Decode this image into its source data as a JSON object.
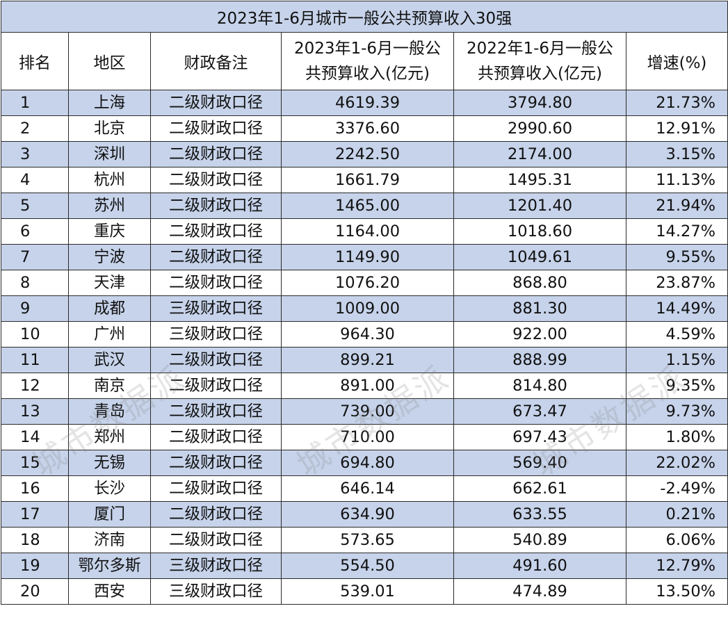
{
  "table": {
    "title": "2023年1-6月城市一般公共预算收入30强",
    "headers": {
      "rank": "排名",
      "region": "地区",
      "note": "财政备注",
      "rev2023_line1": "2023年1-6月一般公",
      "rev2023_line2": "共预算收入(亿元)",
      "rev2022_line1": "2022年1-6月一般公",
      "rev2022_line2": "共预算收入(亿元)",
      "growth": "增速(%)"
    },
    "rows": [
      {
        "rank": "1",
        "region": "上海",
        "note": "二级财政口径",
        "rev2023": "4619.39",
        "rev2022": "3794.80",
        "growth": "21.73%"
      },
      {
        "rank": "2",
        "region": "北京",
        "note": "二级财政口径",
        "rev2023": "3376.60",
        "rev2022": "2990.60",
        "growth": "12.91%"
      },
      {
        "rank": "3",
        "region": "深圳",
        "note": "二级财政口径",
        "rev2023": "2242.50",
        "rev2022": "2174.00",
        "growth": "3.15%"
      },
      {
        "rank": "4",
        "region": "杭州",
        "note": "二级财政口径",
        "rev2023": "1661.79",
        "rev2022": "1495.31",
        "growth": "11.13%"
      },
      {
        "rank": "5",
        "region": "苏州",
        "note": "二级财政口径",
        "rev2023": "1465.00",
        "rev2022": "1201.40",
        "growth": "21.94%"
      },
      {
        "rank": "6",
        "region": "重庆",
        "note": "二级财政口径",
        "rev2023": "1164.00",
        "rev2022": "1018.60",
        "growth": "14.27%"
      },
      {
        "rank": "7",
        "region": "宁波",
        "note": "二级财政口径",
        "rev2023": "1149.90",
        "rev2022": "1049.61",
        "growth": "9.55%"
      },
      {
        "rank": "8",
        "region": "天津",
        "note": "二级财政口径",
        "rev2023": "1076.20",
        "rev2022": "868.80",
        "growth": "23.87%"
      },
      {
        "rank": "9",
        "region": "成都",
        "note": "三级财政口径",
        "rev2023": "1009.00",
        "rev2022": "881.30",
        "growth": "14.49%"
      },
      {
        "rank": "10",
        "region": "广州",
        "note": "三级财政口径",
        "rev2023": "964.30",
        "rev2022": "922.00",
        "growth": "4.59%"
      },
      {
        "rank": "11",
        "region": "武汉",
        "note": "二级财政口径",
        "rev2023": "899.21",
        "rev2022": "888.99",
        "growth": "1.15%"
      },
      {
        "rank": "12",
        "region": "南京",
        "note": "二级财政口径",
        "rev2023": "891.00",
        "rev2022": "814.80",
        "growth": "9.35%"
      },
      {
        "rank": "13",
        "region": "青岛",
        "note": "二级财政口径",
        "rev2023": "739.00",
        "rev2022": "673.47",
        "growth": "9.73%"
      },
      {
        "rank": "14",
        "region": "郑州",
        "note": "二级财政口径",
        "rev2023": "710.00",
        "rev2022": "697.43",
        "growth": "1.80%"
      },
      {
        "rank": "15",
        "region": "无锡",
        "note": "二级财政口径",
        "rev2023": "694.80",
        "rev2022": "569.40",
        "growth": "22.02%"
      },
      {
        "rank": "16",
        "region": "长沙",
        "note": "二级财政口径",
        "rev2023": "646.14",
        "rev2022": "662.61",
        "growth": "-2.49%"
      },
      {
        "rank": "17",
        "region": "厦门",
        "note": "二级财政口径",
        "rev2023": "634.90",
        "rev2022": "633.55",
        "growth": "0.21%"
      },
      {
        "rank": "18",
        "region": "济南",
        "note": "二级财政口径",
        "rev2023": "573.65",
        "rev2022": "540.89",
        "growth": "6.06%"
      },
      {
        "rank": "19",
        "region": "鄂尔多斯",
        "note": "三级财政口径",
        "rev2023": "554.50",
        "rev2022": "491.60",
        "growth": "12.79%"
      },
      {
        "rank": "20",
        "region": "西安",
        "note": "三级财政口径",
        "rev2023": "539.01",
        "rev2022": "474.89",
        "growth": "13.50%"
      }
    ]
  },
  "watermark": {
    "text": "城市数据派"
  },
  "colors": {
    "shaded_row": "#c6d3ea",
    "plain_row": "#ffffff",
    "border": "#2a2a2a"
  }
}
